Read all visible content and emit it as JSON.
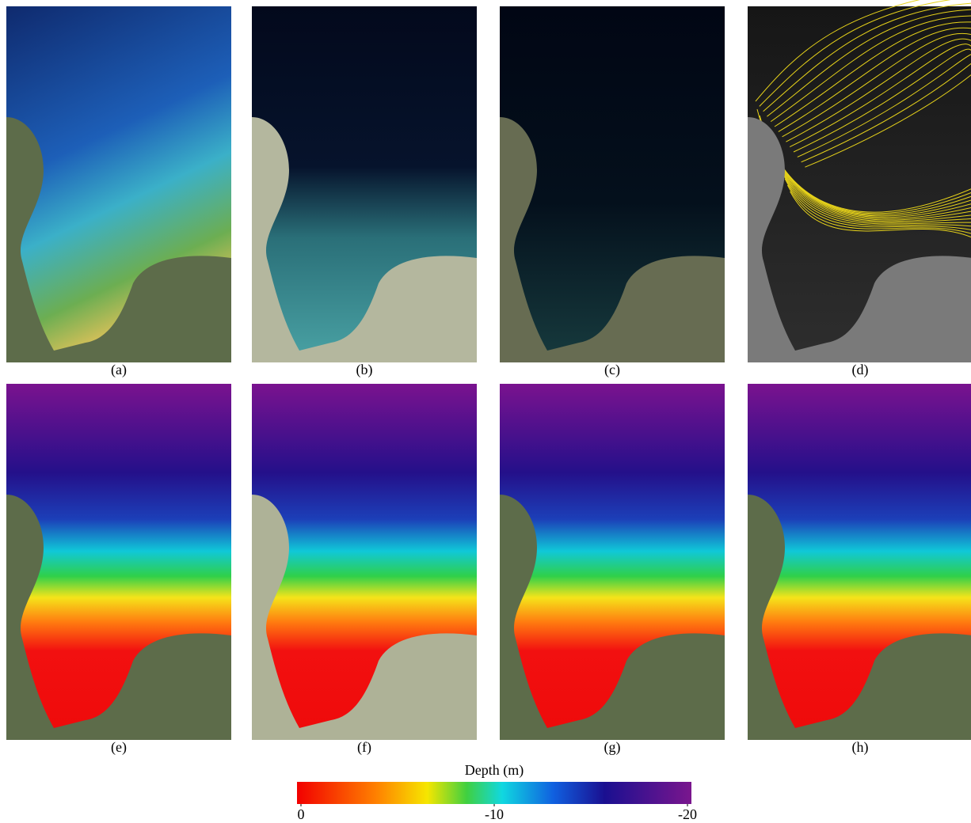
{
  "panel_labels": [
    "(a)",
    "(b)",
    "(c)",
    "(d)",
    "(e)",
    "(f)",
    "(g)",
    "(h)"
  ],
  "colorbar": {
    "title": "Depth (m)",
    "lim": [
      0,
      -20
    ],
    "ticks": [
      0,
      -10,
      -20
    ]
  }
}
